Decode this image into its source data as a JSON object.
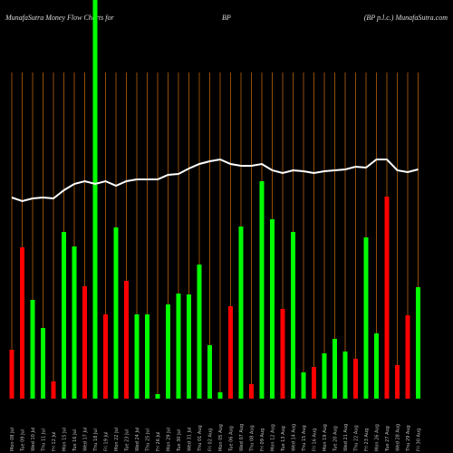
{
  "chart_data": {
    "type": "bar",
    "title": "MunafaSutra  Money Flow  Charts for",
    "subtitle": "BP",
    "source": "(BP p.l.c.) MunafaSutra.com",
    "categories": [
      "Mon 08 Jul",
      "Tue 09 Jul",
      "Wed 10 Jul",
      "Thu 11 Jul",
      "Fri 12 Jul",
      "Mon 15 Jul",
      "Tue 16 Jul",
      "Wed 17 Jul",
      "Thu 18 Jul",
      "Fri 19 Jul",
      "Mon 22 Jul",
      "Tue 23 Jul",
      "Wed 24 Jul",
      "Thu 25 Jul",
      "Fri 26 Jul",
      "Mon 29 Jul",
      "Tue 30 Jul",
      "Wed 31 Jul",
      "Thu 01 Aug",
      "Fri 02 Aug",
      "Mon 05 Aug",
      "Tue 06 Aug",
      "Wed 07 Aug",
      "Thu 08 Aug",
      "Fri 09 Aug",
      "Mon 12 Aug",
      "Tue 13 Aug",
      "Wed 14 Aug",
      "Thu 15 Aug",
      "Fri 16 Aug",
      "Mon 19 Aug",
      "Tue 20 Aug",
      "Wed 21 Aug",
      "Thu 22 Aug",
      "Fri 23 Aug",
      "Mon 26 Aug",
      "Tue 27 Aug",
      "Wed 28 Aug",
      "Thu 29 Aug",
      "Fri 30 Aug"
    ],
    "values": [
      54,
      167,
      109,
      78,
      19,
      184,
      168,
      124,
      440,
      93,
      189,
      130,
      93,
      93,
      5,
      104,
      116,
      115,
      148,
      59,
      7,
      102,
      190,
      16,
      240,
      198,
      99,
      184,
      29,
      35,
      50,
      66,
      52,
      44,
      178,
      72,
      223,
      37,
      92,
      123
    ],
    "colors": [
      "#ff0000",
      "#ff0000",
      "#00ff00",
      "#00ff00",
      "#ff0000",
      "#00ff00",
      "#00ff00",
      "#ff0000",
      "#00ff00",
      "#ff0000",
      "#00ff00",
      "#ff0000",
      "#00ff00",
      "#00ff00",
      "#00ff00",
      "#00ff00",
      "#00ff00",
      "#00ff00",
      "#00ff00",
      "#00ff00",
      "#00ff00",
      "#ff0000",
      "#00ff00",
      "#ff0000",
      "#00ff00",
      "#00ff00",
      "#ff0000",
      "#00ff00",
      "#00ff00",
      "#ff0000",
      "#00ff00",
      "#00ff00",
      "#00ff00",
      "#ff0000",
      "#00ff00",
      "#00ff00",
      "#ff0000",
      "#ff0000",
      "#ff0000",
      "#00ff00"
    ],
    "line_values": [
      222,
      218,
      221,
      222,
      221,
      230,
      237,
      240,
      237,
      240,
      235,
      240,
      242,
      242,
      242,
      247,
      248,
      254,
      259,
      262,
      264,
      259,
      257,
      257,
      259,
      252,
      249,
      252,
      251,
      249,
      251,
      252,
      253,
      256,
      255,
      264,
      264,
      252,
      250,
      253
    ],
    "line_color": "#ffffff",
    "grid_color": "#b8620a",
    "ylim": [
      0,
      440
    ]
  }
}
